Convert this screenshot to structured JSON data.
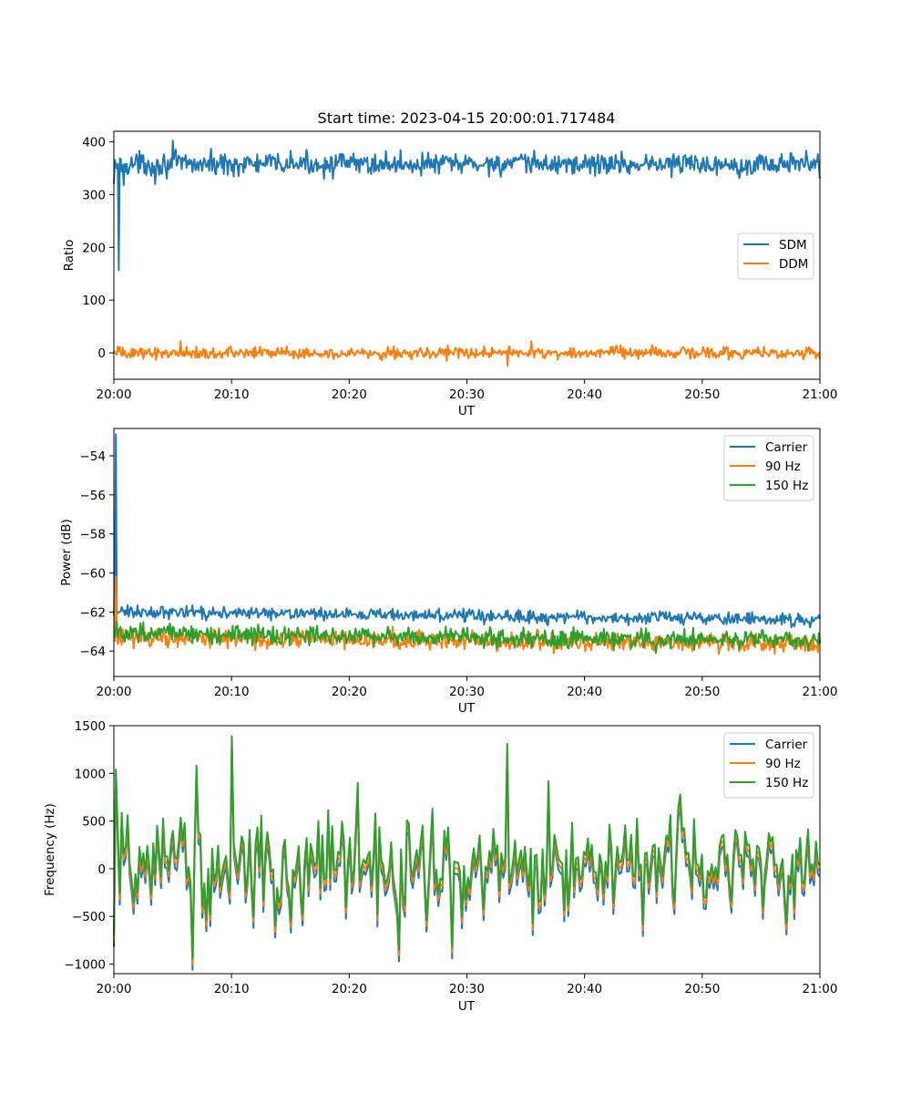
{
  "chart_data": [
    {
      "type": "line",
      "title": "Start time: 2023-04-15 20:00:01.717484",
      "xlabel": "UT",
      "ylabel": "Ratio",
      "xlim": [
        "20:00",
        "21:00"
      ],
      "ylim": [
        -50,
        420
      ],
      "x_ticks": [
        "20:00",
        "20:10",
        "20:20",
        "20:30",
        "20:40",
        "20:50",
        "21:00"
      ],
      "y_ticks": [
        0,
        100,
        200,
        300,
        400
      ],
      "legend_position": "center-right",
      "grid": false,
      "series": [
        {
          "name": "SDM",
          "color": "#1f77b4",
          "base": 358,
          "amplitude": 15,
          "spikes": [
            [
              0,
              320
            ],
            [
              0.4,
              157
            ],
            [
              0.8,
              318
            ],
            [
              5.0,
              402
            ],
            [
              3.5,
              320
            ]
          ],
          "approximate_points": [
            [
              "20:00",
              330
            ],
            [
              "20:01",
              360
            ],
            [
              "20:05",
              402
            ],
            [
              "20:10",
              350
            ],
            [
              "20:20",
              360
            ],
            [
              "20:30",
              350
            ],
            [
              "20:40",
              360
            ],
            [
              "20:50",
              355
            ],
            [
              "21:00",
              330
            ]
          ]
        },
        {
          "name": "DDM",
          "color": "#ff7f0e",
          "base": 0,
          "amplitude": 8,
          "spikes": [
            [
              5.7,
              22
            ],
            [
              33.5,
              -25
            ],
            [
              35.5,
              22
            ]
          ],
          "approximate_points": [
            [
              "20:00",
              -5
            ],
            [
              "20:10",
              5
            ],
            [
              "20:20",
              0
            ],
            [
              "20:30",
              -5
            ],
            [
              "20:40",
              0
            ],
            [
              "20:50",
              0
            ],
            [
              "21:00",
              5
            ]
          ]
        }
      ]
    },
    {
      "type": "line",
      "xlabel": "UT",
      "ylabel": "Power (dB)",
      "xlim": [
        "20:00",
        "21:00"
      ],
      "ylim": [
        -65.3,
        -52.6
      ],
      "x_ticks": [
        "20:00",
        "20:10",
        "20:20",
        "20:30",
        "20:40",
        "20:50",
        "21:00"
      ],
      "y_ticks": [
        -54,
        -56,
        -58,
        -60,
        -62,
        -64
      ],
      "legend_position": "top-right",
      "grid": false,
      "series": [
        {
          "name": "Carrier",
          "color": "#1f77b4",
          "base_start": -62.0,
          "base_end": -62.4,
          "amplitude": 0.22,
          "spikes": [
            [
              0.1,
              -60.2
            ],
            [
              0.2,
              -52.9
            ],
            [
              0.5,
              -62.0
            ]
          ],
          "approximate_points": [
            [
              "20:00",
              -60.2
            ],
            [
              "20:00",
              -52.9
            ],
            [
              "20:01",
              -62.2
            ],
            [
              "20:05",
              -61.4
            ],
            [
              "20:16",
              -61.4
            ],
            [
              "20:30",
              -62.4
            ],
            [
              "20:40",
              -62.2
            ],
            [
              "20:50",
              -62.5
            ],
            [
              "21:00",
              -62.5
            ]
          ]
        },
        {
          "name": "90 Hz",
          "color": "#ff7f0e",
          "base_start": -63.3,
          "base_end": -63.6,
          "amplitude": 0.35,
          "spikes": [
            [
              0.2,
              -60.2
            ],
            [
              0.5,
              -62.8
            ]
          ],
          "approximate_points": [
            [
              "20:00",
              -60.2
            ],
            [
              "20:02",
              -63.5
            ],
            [
              "20:10",
              -63.2
            ],
            [
              "20:20",
              -63.3
            ],
            [
              "20:30",
              -63.5
            ],
            [
              "20:40",
              -63.5
            ],
            [
              "20:50",
              -63.5
            ],
            [
              "21:00",
              -64.3
            ]
          ]
        },
        {
          "name": "150 Hz",
          "color": "#2ca02c",
          "base_start": -63.1,
          "base_end": -63.5,
          "amplitude": 0.35,
          "spikes": [],
          "approximate_points": [
            [
              "20:00",
              -63.3
            ],
            [
              "20:10",
              -63.0
            ],
            [
              "20:20",
              -63.3
            ],
            [
              "20:30",
              -63.5
            ],
            [
              "20:40",
              -63.3
            ],
            [
              "20:50",
              -63.3
            ],
            [
              "21:00",
              -63.1
            ]
          ]
        }
      ]
    },
    {
      "type": "line",
      "xlabel": "UT",
      "ylabel": "Frequency (Hz)",
      "xlim": [
        "20:00",
        "21:00"
      ],
      "ylim": [
        -1100,
        1500
      ],
      "x_ticks": [
        "20:00",
        "20:10",
        "20:20",
        "20:30",
        "20:40",
        "20:50",
        "21:00"
      ],
      "y_ticks": [
        1500,
        1000,
        500,
        0,
        -500,
        -1000
      ],
      "legend_position": "top-right",
      "grid": false,
      "series": [
        {
          "name": "Carrier",
          "color": "#1f77b4",
          "offset": -120,
          "approximate_points": [
            [
              "20:00",
              -800
            ],
            [
              "20:00",
              1030
            ],
            [
              "20:06",
              -990
            ],
            [
              "20:10",
              1380
            ],
            [
              "20:24",
              -880
            ],
            [
              "20:33",
              1300
            ],
            [
              "20:37",
              900
            ],
            [
              "21:00",
              -50
            ]
          ]
        },
        {
          "name": "90 Hz",
          "color": "#ff7f0e",
          "offset": -60,
          "approximate_points": [
            [
              "20:00",
              -750
            ],
            [
              "20:00",
              1030
            ],
            [
              "20:06",
              -950
            ],
            [
              "20:10",
              1380
            ],
            [
              "20:33",
              1300
            ],
            [
              "21:00",
              100
            ]
          ]
        },
        {
          "name": "150 Hz",
          "color": "#2ca02c",
          "offset": 0,
          "approximate_points": [
            [
              "20:00",
              -700
            ],
            [
              "20:00",
              1040
            ],
            [
              "20:06",
              -940
            ],
            [
              "20:10",
              1390
            ],
            [
              "20:24",
              -850
            ],
            [
              "20:33",
              1310
            ],
            [
              "20:37",
              920
            ],
            [
              "21:00",
              100
            ]
          ]
        }
      ]
    }
  ]
}
